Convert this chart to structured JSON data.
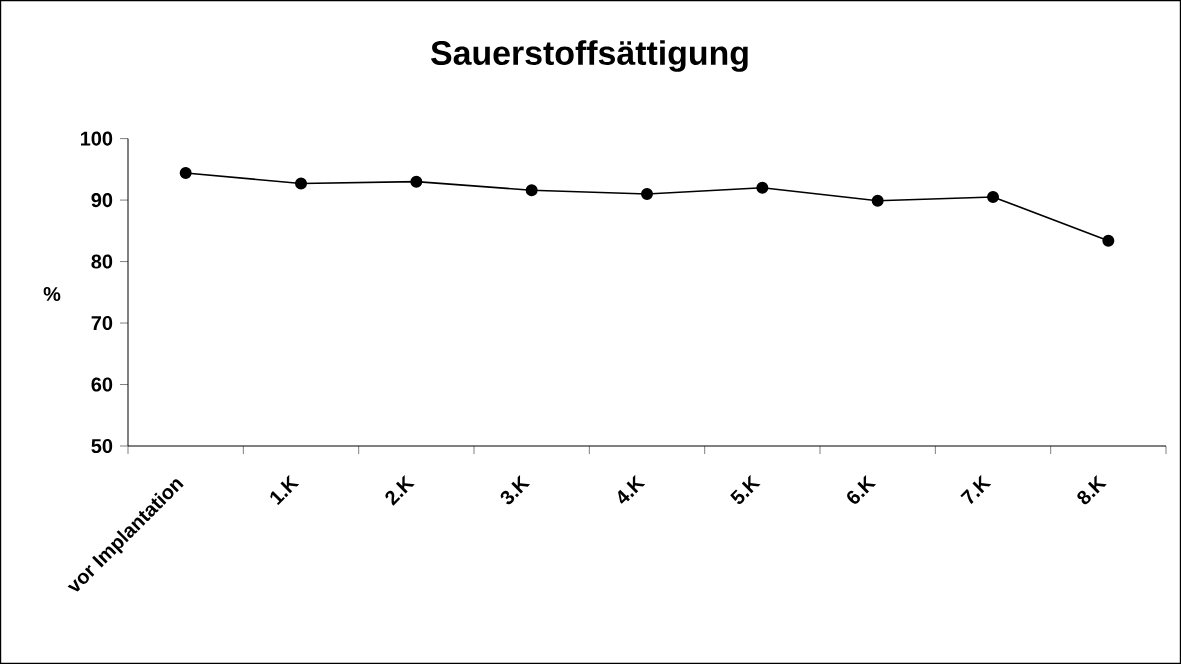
{
  "chart_data": {
    "type": "line",
    "title": "Sauerstoffsättigung",
    "ylabel": "%",
    "categories": [
      "vor Implantation",
      "1.K",
      "2.K",
      "3.K",
      "4.K",
      "5.K",
      "6.K",
      "7.K",
      "8.K"
    ],
    "series": [
      {
        "color": "#000000",
        "values": [
          94.4,
          92.7,
          93.0,
          91.6,
          91.0,
          92.0,
          89.9,
          90.5,
          83.4
        ]
      }
    ],
    "ylim": [
      50,
      100
    ],
    "yticks": [
      50,
      60,
      70,
      80,
      90,
      100
    ],
    "marker": "circle",
    "line_style": "solid",
    "grid": false
  }
}
